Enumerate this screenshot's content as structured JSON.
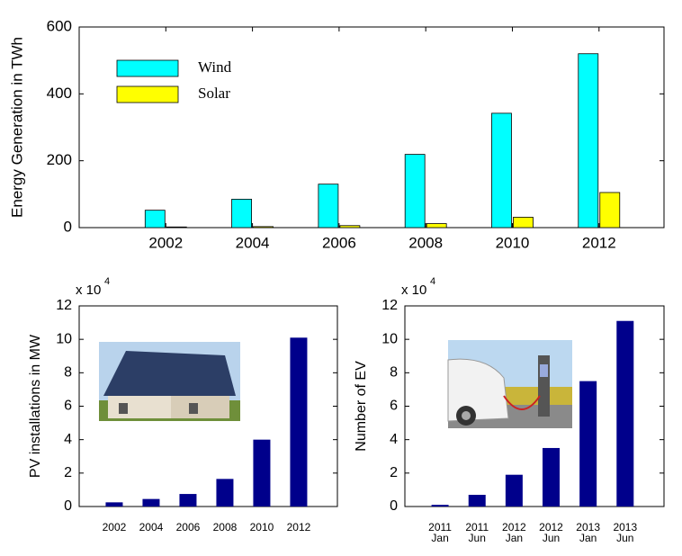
{
  "chart_data": [
    {
      "type": "grouped-bar",
      "ylabel": "Energy Generation in TWh",
      "x": [
        2002,
        2004,
        2006,
        2008,
        2010,
        2012
      ],
      "xlim": [
        2000,
        2013.5
      ],
      "xticks": [
        2002,
        2004,
        2006,
        2008,
        2010,
        2012
      ],
      "series": [
        {
          "name": "Wind",
          "color": "#00ffff",
          "values": [
            52,
            85,
            130,
            219,
            342,
            520
          ]
        },
        {
          "name": "Solar",
          "color": "#ffff00",
          "values": [
            2,
            3,
            6,
            12,
            31,
            105
          ]
        }
      ],
      "ylim": [
        0,
        600
      ],
      "yticks": [
        0,
        200,
        400,
        600
      ],
      "legend": "upper left"
    },
    {
      "type": "bar",
      "ylabel": "PV installations in MW",
      "scale_label": "x 10",
      "scale_exponent": "4",
      "categories": [
        "2002",
        "2004",
        "2006",
        "2008",
        "2010",
        "2012"
      ],
      "values": [
        0.25,
        0.45,
        0.75,
        1.65,
        4.0,
        10.1
      ],
      "color": "#00008b",
      "ylim": [
        0,
        12
      ],
      "yticks": [
        0,
        2,
        4,
        6,
        8,
        10,
        12
      ]
    },
    {
      "type": "bar",
      "ylabel": "Number of EV",
      "scale_label": "x 10",
      "scale_exponent": "4",
      "categories": [
        [
          "2011",
          "Jan"
        ],
        [
          "2011",
          "Jun"
        ],
        [
          "2012",
          "Jan"
        ],
        [
          "2012",
          "Jun"
        ],
        [
          "2013",
          "Jan"
        ],
        [
          "2013",
          "Jun"
        ]
      ],
      "values": [
        0.1,
        0.7,
        1.9,
        3.5,
        7.5,
        11.1
      ],
      "color": "#00008b",
      "ylim": [
        0,
        12
      ],
      "yticks": [
        0,
        2,
        4,
        6,
        8,
        10,
        12
      ]
    }
  ]
}
